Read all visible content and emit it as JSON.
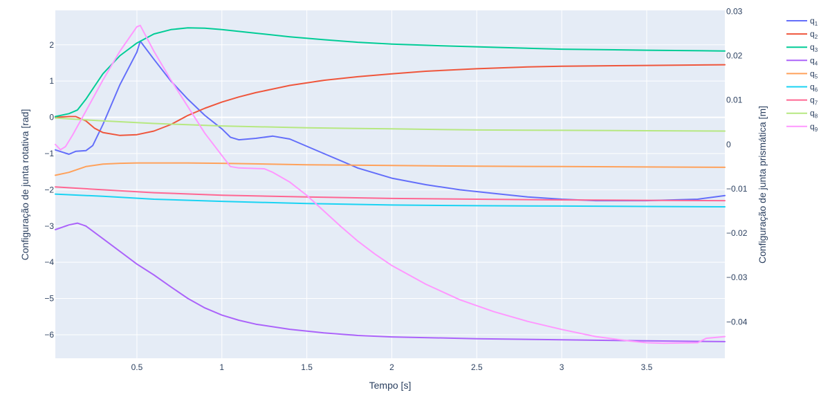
{
  "chart_data": {
    "type": "line",
    "xlabel": "Tempo [s]",
    "ylabel_left": "Configuração de junta rotativa [rad]",
    "ylabel_right": "Configuração de junta prismática [m]",
    "xlim": [
      0.02,
      3.96
    ],
    "ylim_left": [
      -6.65,
      2.95
    ],
    "ylim_right": [
      -0.0482,
      0.0302
    ],
    "x_ticks": [
      0.5,
      1,
      1.5,
      2,
      2.5,
      3,
      3.5
    ],
    "x_tick_labels": [
      "0.5",
      "1",
      "1.5",
      "2",
      "2.5",
      "3",
      "3.5"
    ],
    "y_ticks_left": [
      2,
      1,
      0,
      -1,
      -2,
      -3,
      -4,
      -5,
      -6
    ],
    "y_tick_labels_left": [
      "2",
      "1",
      "0",
      "−1",
      "−2",
      "−3",
      "−4",
      "−5",
      "−6"
    ],
    "y_ticks_right": [
      0.03,
      0.02,
      0.01,
      0,
      -0.01,
      -0.02,
      -0.03,
      -0.04
    ],
    "y_tick_labels_right": [
      "0.03",
      "0.02",
      "0.01",
      "0",
      "−0.01",
      "−0.02",
      "−0.03",
      "−0.04"
    ],
    "grid": true,
    "legend_position": "right",
    "series": [
      {
        "name": "q1",
        "label_base": "q",
        "label_sub": "1",
        "axis": "left",
        "color": "#636efa",
        "points": [
          [
            0.02,
            -0.9
          ],
          [
            0.1,
            -1.02
          ],
          [
            0.14,
            -0.94
          ],
          [
            0.2,
            -0.92
          ],
          [
            0.24,
            -0.78
          ],
          [
            0.3,
            -0.2
          ],
          [
            0.4,
            0.9
          ],
          [
            0.5,
            1.8
          ],
          [
            0.52,
            2.1
          ],
          [
            0.6,
            1.6
          ],
          [
            0.7,
            1.0
          ],
          [
            0.8,
            0.5
          ],
          [
            0.9,
            0.05
          ],
          [
            1.0,
            -0.32
          ],
          [
            1.05,
            -0.55
          ],
          [
            1.1,
            -0.62
          ],
          [
            1.2,
            -0.58
          ],
          [
            1.3,
            -0.52
          ],
          [
            1.4,
            -0.6
          ],
          [
            1.5,
            -0.8
          ],
          [
            1.6,
            -1.0
          ],
          [
            1.7,
            -1.2
          ],
          [
            1.8,
            -1.4
          ],
          [
            2.0,
            -1.68
          ],
          [
            2.2,
            -1.86
          ],
          [
            2.4,
            -2.0
          ],
          [
            2.6,
            -2.1
          ],
          [
            2.8,
            -2.2
          ],
          [
            3.0,
            -2.26
          ],
          [
            3.2,
            -2.3
          ],
          [
            3.5,
            -2.3
          ],
          [
            3.8,
            -2.26
          ],
          [
            3.9,
            -2.2
          ],
          [
            3.96,
            -2.16
          ]
        ]
      },
      {
        "name": "q2",
        "label_base": "q",
        "label_sub": "2",
        "axis": "left",
        "color": "#ef553b",
        "points": [
          [
            0.02,
            0.0
          ],
          [
            0.1,
            0.02
          ],
          [
            0.14,
            0.02
          ],
          [
            0.2,
            -0.1
          ],
          [
            0.25,
            -0.3
          ],
          [
            0.3,
            -0.42
          ],
          [
            0.4,
            -0.5
          ],
          [
            0.5,
            -0.48
          ],
          [
            0.6,
            -0.38
          ],
          [
            0.7,
            -0.2
          ],
          [
            0.8,
            0.05
          ],
          [
            0.9,
            0.25
          ],
          [
            1.0,
            0.42
          ],
          [
            1.1,
            0.56
          ],
          [
            1.2,
            0.68
          ],
          [
            1.4,
            0.88
          ],
          [
            1.6,
            1.02
          ],
          [
            1.8,
            1.12
          ],
          [
            2.0,
            1.2
          ],
          [
            2.2,
            1.27
          ],
          [
            2.5,
            1.34
          ],
          [
            2.8,
            1.39
          ],
          [
            3.0,
            1.41
          ],
          [
            3.5,
            1.43
          ],
          [
            3.96,
            1.45
          ]
        ]
      },
      {
        "name": "q3",
        "label_base": "q",
        "label_sub": "3",
        "axis": "left",
        "color": "#00cc96",
        "points": [
          [
            0.02,
            0.02
          ],
          [
            0.1,
            0.1
          ],
          [
            0.15,
            0.2
          ],
          [
            0.2,
            0.5
          ],
          [
            0.25,
            0.85
          ],
          [
            0.3,
            1.2
          ],
          [
            0.4,
            1.7
          ],
          [
            0.5,
            2.05
          ],
          [
            0.6,
            2.3
          ],
          [
            0.7,
            2.42
          ],
          [
            0.8,
            2.47
          ],
          [
            0.9,
            2.46
          ],
          [
            1.0,
            2.42
          ],
          [
            1.2,
            2.32
          ],
          [
            1.4,
            2.22
          ],
          [
            1.6,
            2.14
          ],
          [
            1.8,
            2.07
          ],
          [
            2.0,
            2.02
          ],
          [
            2.3,
            1.97
          ],
          [
            2.6,
            1.93
          ],
          [
            3.0,
            1.88
          ],
          [
            3.5,
            1.85
          ],
          [
            3.96,
            1.83
          ]
        ]
      },
      {
        "name": "q4",
        "label_base": "q",
        "label_sub": "4",
        "axis": "left",
        "color": "#ab63fa",
        "points": [
          [
            0.02,
            -3.1
          ],
          [
            0.1,
            -2.97
          ],
          [
            0.15,
            -2.92
          ],
          [
            0.2,
            -3.0
          ],
          [
            0.3,
            -3.35
          ],
          [
            0.4,
            -3.7
          ],
          [
            0.5,
            -4.05
          ],
          [
            0.6,
            -4.35
          ],
          [
            0.7,
            -4.68
          ],
          [
            0.8,
            -5.0
          ],
          [
            0.9,
            -5.26
          ],
          [
            1.0,
            -5.46
          ],
          [
            1.1,
            -5.6
          ],
          [
            1.2,
            -5.71
          ],
          [
            1.4,
            -5.85
          ],
          [
            1.6,
            -5.95
          ],
          [
            1.8,
            -6.02
          ],
          [
            2.0,
            -6.06
          ],
          [
            2.5,
            -6.11
          ],
          [
            3.0,
            -6.14
          ],
          [
            3.5,
            -6.17
          ],
          [
            3.96,
            -6.19
          ]
        ]
      },
      {
        "name": "q5",
        "label_base": "q",
        "label_sub": "5",
        "axis": "left",
        "color": "#ffa15a",
        "points": [
          [
            0.02,
            -1.6
          ],
          [
            0.1,
            -1.52
          ],
          [
            0.2,
            -1.36
          ],
          [
            0.3,
            -1.29
          ],
          [
            0.4,
            -1.27
          ],
          [
            0.5,
            -1.26
          ],
          [
            0.8,
            -1.26
          ],
          [
            1.0,
            -1.27
          ],
          [
            1.5,
            -1.31
          ],
          [
            2.0,
            -1.33
          ],
          [
            2.5,
            -1.35
          ],
          [
            3.0,
            -1.36
          ],
          [
            3.5,
            -1.37
          ],
          [
            3.96,
            -1.38
          ]
        ]
      },
      {
        "name": "q6",
        "label_base": "q",
        "label_sub": "6",
        "axis": "left",
        "color": "#19d3f3",
        "points": [
          [
            0.02,
            -2.12
          ],
          [
            0.3,
            -2.18
          ],
          [
            0.6,
            -2.26
          ],
          [
            1.0,
            -2.32
          ],
          [
            1.5,
            -2.38
          ],
          [
            2.0,
            -2.42
          ],
          [
            2.5,
            -2.44
          ],
          [
            3.0,
            -2.45
          ],
          [
            3.5,
            -2.46
          ],
          [
            3.96,
            -2.47
          ]
        ]
      },
      {
        "name": "q7",
        "label_base": "q",
        "label_sub": "7",
        "axis": "left",
        "color": "#ff6692",
        "points": [
          [
            0.02,
            -1.92
          ],
          [
            0.3,
            -2.0
          ],
          [
            0.6,
            -2.08
          ],
          [
            1.0,
            -2.15
          ],
          [
            1.5,
            -2.2
          ],
          [
            2.0,
            -2.24
          ],
          [
            2.5,
            -2.26
          ],
          [
            3.0,
            -2.28
          ],
          [
            3.5,
            -2.29
          ],
          [
            3.96,
            -2.3
          ]
        ]
      },
      {
        "name": "q8",
        "label_base": "q",
        "label_sub": "8",
        "axis": "left",
        "color": "#b6e880",
        "points": [
          [
            0.02,
            -0.02
          ],
          [
            0.3,
            -0.1
          ],
          [
            0.6,
            -0.17
          ],
          [
            1.0,
            -0.24
          ],
          [
            1.5,
            -0.29
          ],
          [
            2.0,
            -0.32
          ],
          [
            2.5,
            -0.35
          ],
          [
            3.0,
            -0.36
          ],
          [
            3.5,
            -0.37
          ],
          [
            3.96,
            -0.38
          ]
        ]
      },
      {
        "name": "q9",
        "label_base": "q",
        "label_sub": "9",
        "axis": "right",
        "color": "#ff97ff",
        "points": [
          [
            0.02,
            0.0
          ],
          [
            0.05,
            -0.0012
          ],
          [
            0.08,
            -0.0005
          ],
          [
            0.12,
            0.002
          ],
          [
            0.2,
            0.0075
          ],
          [
            0.3,
            0.0145
          ],
          [
            0.4,
            0.021
          ],
          [
            0.5,
            0.0265
          ],
          [
            0.52,
            0.0268
          ],
          [
            0.6,
            0.021
          ],
          [
            0.7,
            0.0145
          ],
          [
            0.8,
            0.0085
          ],
          [
            0.9,
            0.0025
          ],
          [
            1.0,
            -0.0025
          ],
          [
            1.05,
            -0.005
          ],
          [
            1.1,
            -0.0053
          ],
          [
            1.25,
            -0.0055
          ],
          [
            1.3,
            -0.0063
          ],
          [
            1.4,
            -0.0085
          ],
          [
            1.5,
            -0.0115
          ],
          [
            1.6,
            -0.015
          ],
          [
            1.7,
            -0.0185
          ],
          [
            1.8,
            -0.0218
          ],
          [
            1.9,
            -0.0247
          ],
          [
            2.0,
            -0.0273
          ],
          [
            2.2,
            -0.0315
          ],
          [
            2.4,
            -0.035
          ],
          [
            2.6,
            -0.0377
          ],
          [
            2.8,
            -0.0399
          ],
          [
            3.0,
            -0.0417
          ],
          [
            3.2,
            -0.0433
          ],
          [
            3.4,
            -0.0443
          ],
          [
            3.5,
            -0.0447
          ],
          [
            3.6,
            -0.0448
          ],
          [
            3.8,
            -0.0447
          ],
          [
            3.85,
            -0.0437
          ],
          [
            3.96,
            -0.0433
          ]
        ]
      }
    ]
  }
}
